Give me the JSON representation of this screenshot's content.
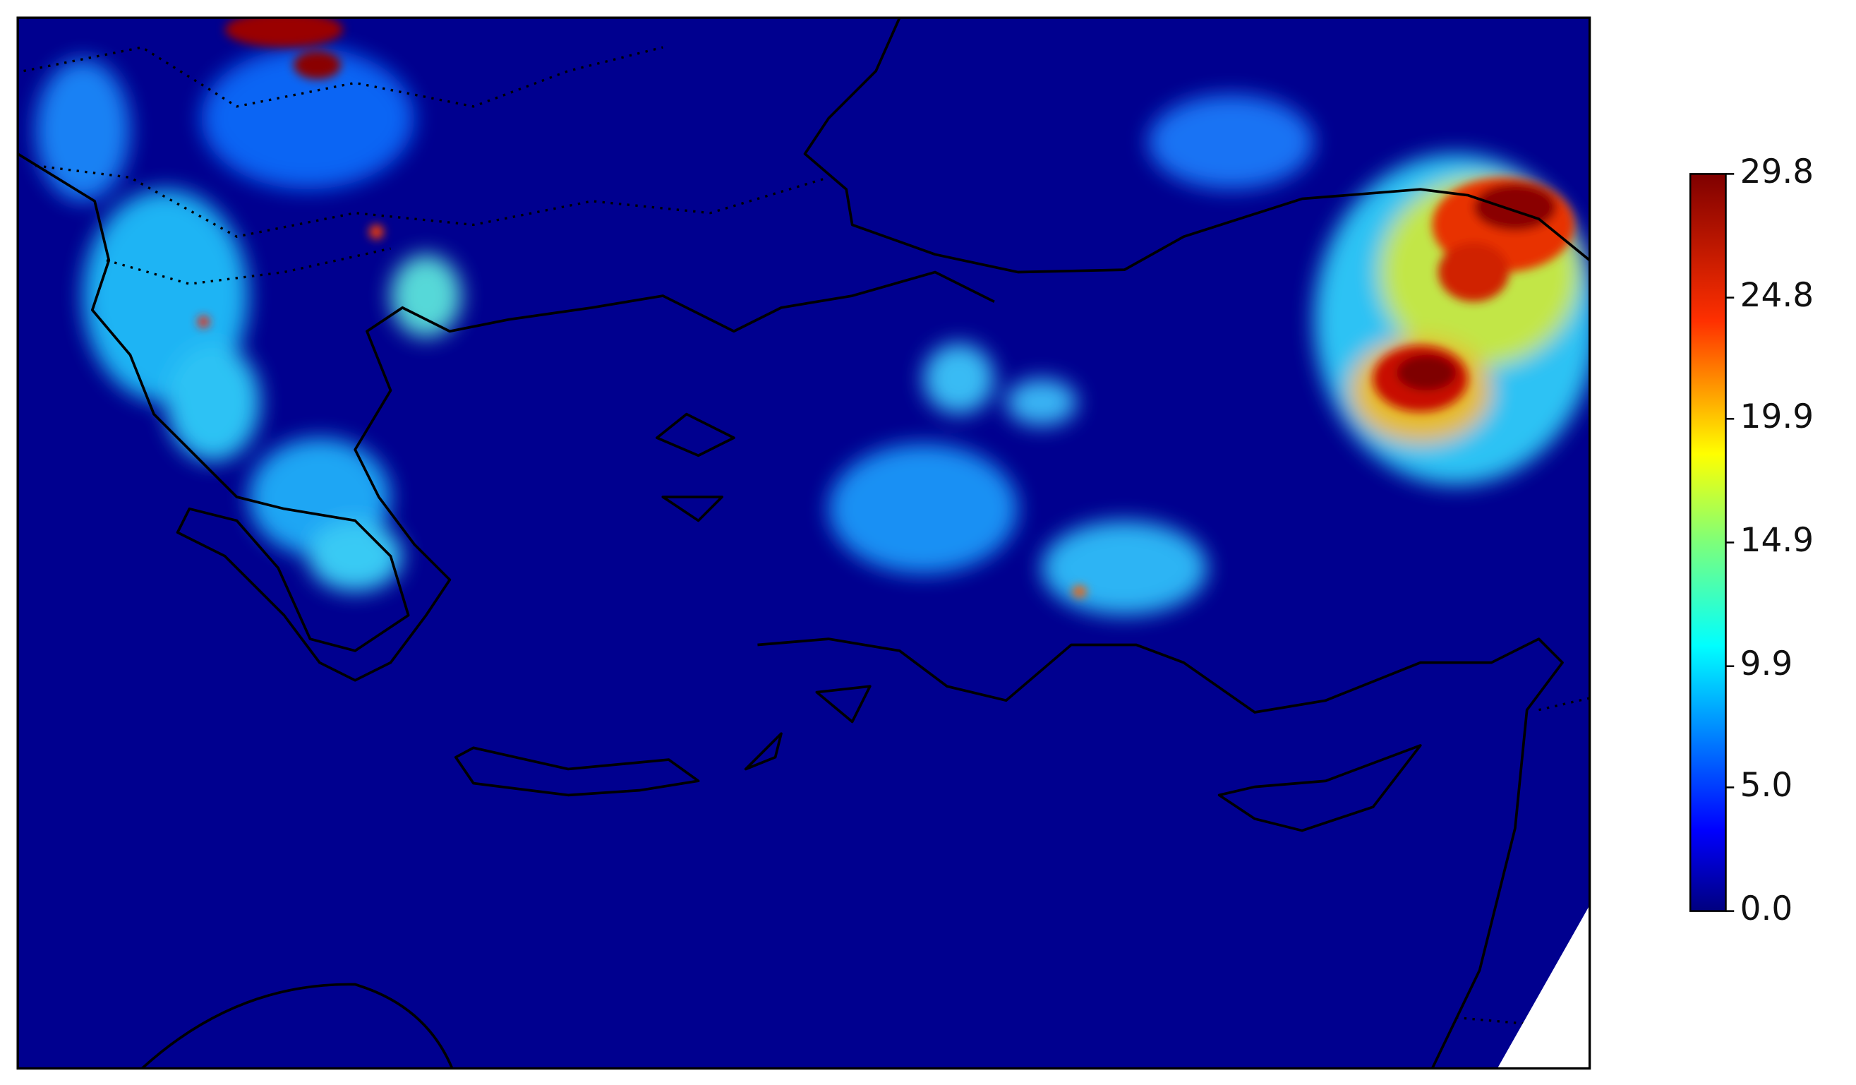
{
  "colorbar": {
    "colormap": "jet",
    "lim": [
      0,
      29.8
    ],
    "ticks": [
      {
        "value": 0,
        "label": "0.0"
      },
      {
        "value": 5,
        "label": "5.0"
      },
      9.9,
      14.9,
      19.9,
      24.8,
      29.8
    ]
  }
}
